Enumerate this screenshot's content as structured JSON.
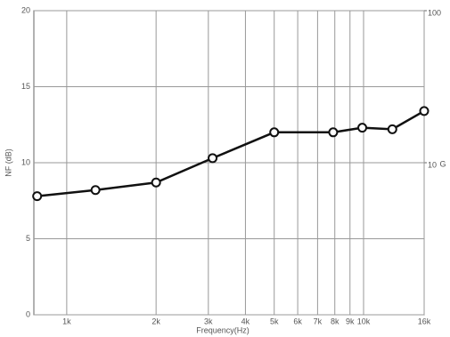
{
  "chart_data": {
    "type": "line",
    "x_label": "Frequency(Hz)",
    "y_label": "NF (dB)",
    "y2_label": "G",
    "x": [
      795,
      1250,
      2000,
      3100,
      5000,
      7900,
      9900,
      12500,
      16000
    ],
    "series": [
      {
        "name": "NF",
        "color": "#111111",
        "values": [
          7.8,
          8.2,
          8.7,
          10.3,
          12.0,
          12.0,
          12.3,
          12.2,
          13.4
        ]
      }
    ],
    "xscale": "log",
    "xlim": [
      775,
      16000
    ],
    "xticks": [
      {
        "value": 1000,
        "label": "1k"
      },
      {
        "value": 2000,
        "label": "2k"
      },
      {
        "value": 3000,
        "label": "3k"
      },
      {
        "value": 4000,
        "label": "4k"
      },
      {
        "value": 5000,
        "label": "5k"
      },
      {
        "value": 6000,
        "label": "6k"
      },
      {
        "value": 7000,
        "label": "7k"
      },
      {
        "value": 8000,
        "label": "8k"
      },
      {
        "value": 9000,
        "label": "9k"
      },
      {
        "value": 10000,
        "label": "10k"
      },
      {
        "value": 16000,
        "label": "16k"
      }
    ],
    "ylim": [
      0,
      20
    ],
    "yticks": [
      0,
      5,
      10,
      15,
      20
    ],
    "y2scale": "log",
    "y2lim": [
      1,
      100
    ],
    "y2ticks": [
      10,
      100
    ],
    "grid": true
  }
}
